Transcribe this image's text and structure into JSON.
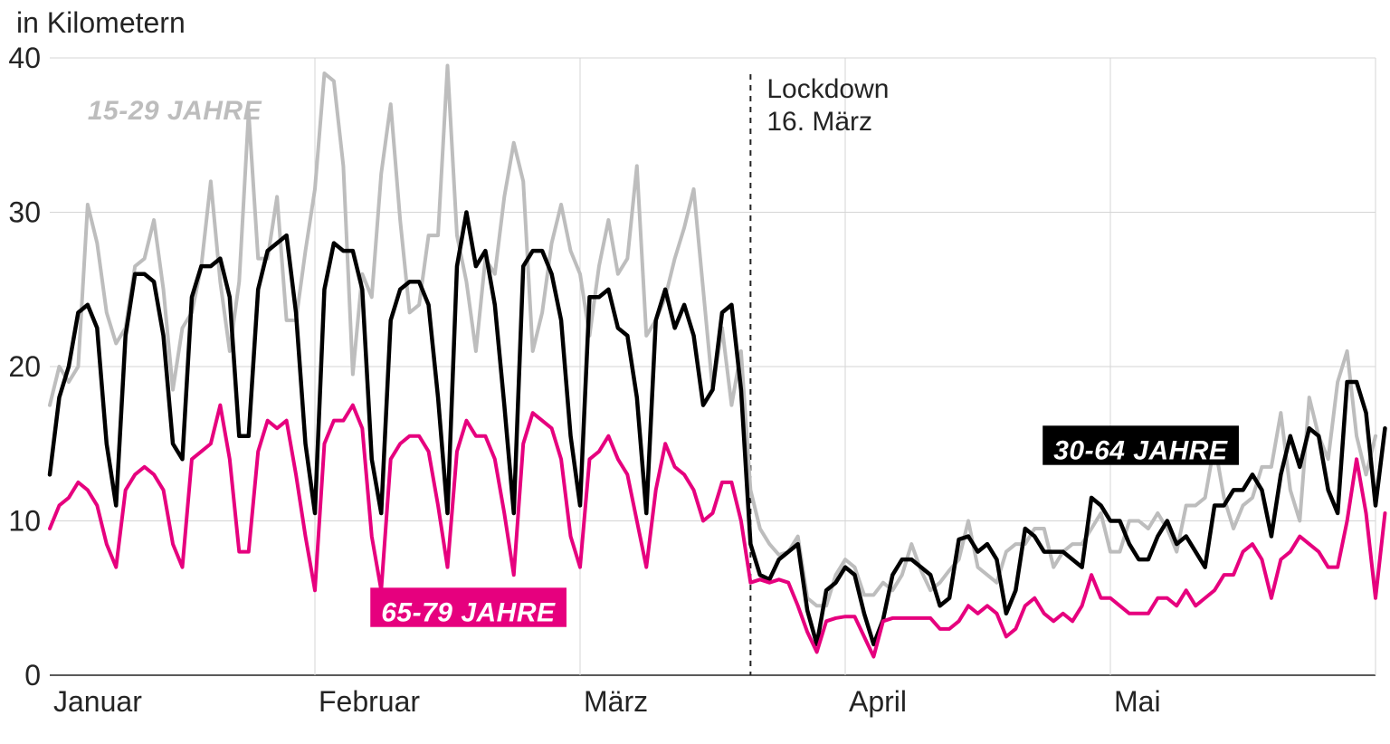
{
  "chart": {
    "type": "line",
    "y_axis": {
      "title": "in Kilometern",
      "min": 0,
      "max": 40,
      "ticks": [
        0,
        10,
        20,
        30,
        40
      ],
      "title_fontsize": 32,
      "tick_fontsize": 32,
      "tick_color": "#242424",
      "grid_color": "#d5d5d5"
    },
    "x_axis": {
      "categories": [
        "Januar",
        "Februar",
        "März",
        "April",
        "Mai"
      ],
      "tick_fontsize": 32,
      "tick_color": "#242424",
      "grid_color": "#d5d5d5"
    },
    "background_color": "#ffffff",
    "annotation": {
      "lines": [
        "Lockdown",
        "16. März"
      ],
      "x_index": 74,
      "fontsize": 30,
      "color": "#242424",
      "dash": "6 6"
    },
    "series": [
      {
        "id": "age_15_29",
        "label": "15-29 JAHRE",
        "color": "#bdbdbd",
        "line_width": 4,
        "label_style": "plain",
        "label_pos": {
          "x_index": 4,
          "y_value": 36
        },
        "values": [
          17.5,
          20,
          19,
          20,
          30.5,
          28,
          23.5,
          21.5,
          22.5,
          26.5,
          27,
          29.5,
          25,
          18.5,
          22.5,
          23.5,
          26.5,
          32,
          25.5,
          21,
          25.5,
          36.5,
          27,
          27,
          31,
          23,
          23,
          27.5,
          31.5,
          39,
          38.5,
          33,
          19.5,
          26,
          24.5,
          32.5,
          37,
          29.5,
          23.5,
          24,
          28.5,
          28.5,
          39.5,
          28.5,
          25.5,
          21,
          27,
          26,
          31,
          34.5,
          32,
          21,
          23.5,
          28,
          30.5,
          27.5,
          26,
          22,
          26.5,
          29.5,
          26,
          27,
          33,
          22,
          23,
          24.5,
          27,
          29,
          31.5,
          25,
          18.5,
          22.5,
          17.5,
          21,
          12,
          9.5,
          8.5,
          7.8,
          8,
          9,
          5,
          4.5,
          4.5,
          6.5,
          7.5,
          7,
          5.2,
          5.2,
          6,
          5.5,
          6.5,
          8.5,
          6.8,
          5.5,
          6,
          6.8,
          7.5,
          10,
          7,
          6.5,
          6,
          8,
          8.5,
          8.5,
          9.5,
          9.5,
          7,
          8,
          8.5,
          8.5,
          9.5,
          10.5,
          8,
          8,
          10,
          10,
          9.5,
          10.5,
          9.5,
          8,
          11,
          11,
          11.5,
          15,
          11.5,
          9.5,
          11,
          11.5,
          13.5,
          13.5,
          17,
          12,
          10,
          18,
          15.5,
          14,
          19,
          21,
          15.5,
          13,
          15.5
        ]
      },
      {
        "id": "age_30_64",
        "label": "30-64 JAHRE",
        "color": "#000000",
        "line_width": 4.5,
        "label_style": "box",
        "label_bg": "#000000",
        "label_fg": "#ffffff",
        "label_pos": {
          "x_index": 106,
          "y_value": 14
        },
        "values": [
          13,
          18,
          20,
          23.5,
          24,
          22.5,
          15,
          11,
          22,
          26,
          26,
          25.5,
          22,
          15,
          14,
          24.5,
          26.5,
          26.5,
          27,
          24.5,
          15.5,
          15.5,
          25,
          27.5,
          28,
          28.5,
          23.5,
          15,
          10.5,
          25,
          28,
          27.5,
          27.5,
          25,
          14,
          10.5,
          23,
          25,
          25.5,
          25.5,
          24,
          18,
          10.5,
          26.5,
          30,
          26.5,
          27.5,
          24,
          17.5,
          10.5,
          26.5,
          27.5,
          27.5,
          26,
          23,
          15.5,
          11,
          24.5,
          24.5,
          25,
          22.5,
          22,
          18,
          10.5,
          23,
          25,
          22.5,
          24,
          22,
          17.5,
          18.5,
          23.5,
          24,
          18.5,
          8.5,
          6.5,
          6.2,
          7.5,
          8,
          8.5,
          4.2,
          2,
          5.5,
          6,
          7,
          6.5,
          4,
          2,
          3.6,
          6.5,
          7.5,
          7.5,
          7,
          6.5,
          4.5,
          5,
          8.8,
          9,
          8,
          8.5,
          7.5,
          4,
          5.5,
          9.5,
          9,
          8,
          8,
          8,
          7.5,
          7,
          11.5,
          11,
          10,
          10,
          8.5,
          7.5,
          7.5,
          9,
          10,
          8.5,
          9,
          8,
          7,
          11,
          11,
          12,
          12,
          13,
          12,
          9,
          13,
          15.5,
          13.5,
          16,
          15.5,
          12,
          10.5,
          19,
          19,
          17,
          11,
          16
        ]
      },
      {
        "id": "age_65_79",
        "label": "65-79 JAHRE",
        "color": "#e6007e",
        "line_width": 4,
        "label_style": "box",
        "label_bg": "#e6007e",
        "label_fg": "#ffffff",
        "label_pos": {
          "x_index": 35,
          "y_value": 3.5
        },
        "values": [
          9.5,
          11,
          11.5,
          12.5,
          12,
          11,
          8.5,
          7,
          12,
          13,
          13.5,
          13,
          12,
          8.5,
          7,
          14,
          14.5,
          15,
          17.5,
          14,
          8,
          8,
          14.5,
          16.5,
          16,
          16.5,
          13,
          9,
          5.5,
          15,
          16.5,
          16.5,
          17.5,
          16,
          9,
          5.5,
          14,
          15,
          15.5,
          15.5,
          14.5,
          11,
          7,
          14.5,
          16.5,
          15.5,
          15.5,
          14,
          10.5,
          6.5,
          15,
          17,
          16.5,
          16,
          14,
          9,
          7,
          14,
          14.5,
          15.5,
          14,
          13,
          10,
          7,
          12,
          15,
          13.5,
          13,
          12,
          10,
          10.5,
          12.5,
          12.5,
          10,
          6,
          6.2,
          6,
          6.2,
          6,
          4.5,
          2.8,
          1.5,
          3.5,
          3.7,
          3.8,
          3.8,
          2.5,
          1.2,
          3.5,
          3.7,
          3.7,
          3.7,
          3.7,
          3.7,
          3,
          3,
          3.5,
          4.5,
          4,
          4.5,
          4,
          2.5,
          3,
          4.5,
          5,
          4,
          3.5,
          4,
          3.5,
          4.5,
          6.5,
          5,
          5,
          4.5,
          4,
          4,
          4,
          5,
          5,
          4.5,
          5.5,
          4.5,
          5,
          5.5,
          6.5,
          6.5,
          8,
          8.5,
          7.5,
          5,
          7.5,
          8,
          9,
          8.5,
          8,
          7,
          7,
          10,
          14,
          10.5,
          5,
          10.5
        ]
      }
    ]
  }
}
